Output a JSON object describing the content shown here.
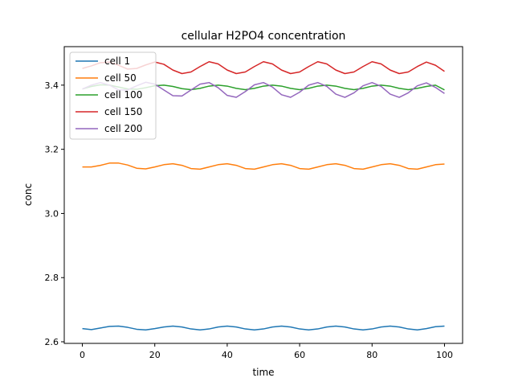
{
  "chart_data": {
    "type": "line",
    "title": "cellular H2PO4 concentration",
    "xlabel": "time",
    "ylabel": "conc",
    "xlim": [
      -5,
      105
    ],
    "ylim": [
      2.595,
      3.52
    ],
    "xticks": [
      0,
      20,
      40,
      60,
      80,
      100
    ],
    "xtick_labels": [
      "0",
      "20",
      "40",
      "60",
      "80",
      "100"
    ],
    "yticks": [
      2.6,
      2.8,
      3.0,
      3.2,
      3.4
    ],
    "ytick_labels": [
      "2.6",
      "2.8",
      "3.0",
      "3.2",
      "3.4"
    ],
    "grid": false,
    "legend_position": "top-left",
    "series": [
      {
        "name": "cell 1",
        "color": "#1f77b4",
        "x": [
          0,
          2.5,
          5,
          7.5,
          10,
          12.5,
          15,
          17.5,
          20,
          22.5,
          25,
          27.5,
          30,
          32.5,
          35,
          37.5,
          40,
          42.5,
          45,
          47.5,
          50,
          52.5,
          55,
          57.5,
          60,
          62.5,
          65,
          67.5,
          70,
          72.5,
          75,
          77.5,
          80,
          82.5,
          85,
          87.5,
          90,
          92.5,
          95,
          97.5,
          100
        ],
        "y": [
          2.641,
          2.638,
          2.643,
          2.648,
          2.649,
          2.645,
          2.639,
          2.637,
          2.641,
          2.646,
          2.649,
          2.646,
          2.64,
          2.637,
          2.64,
          2.646,
          2.649,
          2.646,
          2.64,
          2.637,
          2.64,
          2.646,
          2.649,
          2.646,
          2.64,
          2.637,
          2.64,
          2.646,
          2.649,
          2.646,
          2.64,
          2.637,
          2.64,
          2.646,
          2.649,
          2.646,
          2.64,
          2.637,
          2.641,
          2.647,
          2.649
        ]
      },
      {
        "name": "cell 50",
        "color": "#ff7f0e",
        "x": [
          0,
          2.5,
          5,
          7.5,
          10,
          12.5,
          15,
          17.5,
          20,
          22.5,
          25,
          27.5,
          30,
          32.5,
          35,
          37.5,
          40,
          42.5,
          45,
          47.5,
          50,
          52.5,
          55,
          57.5,
          60,
          62.5,
          65,
          67.5,
          70,
          72.5,
          75,
          77.5,
          80,
          82.5,
          85,
          87.5,
          90,
          92.5,
          95,
          97.5,
          100
        ],
        "y": [
          3.145,
          3.145,
          3.15,
          3.157,
          3.157,
          3.151,
          3.141,
          3.139,
          3.145,
          3.152,
          3.155,
          3.15,
          3.14,
          3.138,
          3.145,
          3.152,
          3.155,
          3.15,
          3.14,
          3.138,
          3.145,
          3.152,
          3.155,
          3.15,
          3.14,
          3.138,
          3.145,
          3.152,
          3.155,
          3.15,
          3.14,
          3.138,
          3.145,
          3.152,
          3.155,
          3.15,
          3.14,
          3.138,
          3.145,
          3.152,
          3.154
        ]
      },
      {
        "name": "cell 100",
        "color": "#2ca02c",
        "x": [
          0,
          2.5,
          5,
          7.5,
          10,
          12.5,
          15,
          17.5,
          20,
          22.5,
          25,
          27.5,
          30,
          32.5,
          35,
          37.5,
          40,
          42.5,
          45,
          47.5,
          50,
          52.5,
          55,
          57.5,
          60,
          62.5,
          65,
          67.5,
          70,
          72.5,
          75,
          77.5,
          80,
          82.5,
          85,
          87.5,
          90,
          92.5,
          95,
          97.5,
          100
        ],
        "y": [
          3.388,
          3.396,
          3.401,
          3.4,
          3.394,
          3.388,
          3.387,
          3.392,
          3.398,
          3.4,
          3.396,
          3.389,
          3.386,
          3.39,
          3.397,
          3.4,
          3.397,
          3.39,
          3.386,
          3.39,
          3.397,
          3.4,
          3.397,
          3.39,
          3.386,
          3.39,
          3.397,
          3.4,
          3.397,
          3.39,
          3.386,
          3.39,
          3.397,
          3.4,
          3.397,
          3.39,
          3.386,
          3.39,
          3.396,
          3.4,
          3.385
        ]
      },
      {
        "name": "cell 150",
        "color": "#d62728",
        "x": [
          0,
          2.5,
          5,
          7.5,
          10,
          12.5,
          15,
          17.5,
          20,
          22.5,
          25,
          27.5,
          30,
          32.5,
          35,
          37.5,
          40,
          42.5,
          45,
          47.5,
          50,
          52.5,
          55,
          57.5,
          60,
          62.5,
          65,
          67.5,
          70,
          72.5,
          75,
          77.5,
          80,
          82.5,
          85,
          87.5,
          90,
          92.5,
          95,
          97.5,
          100
        ],
        "y": [
          3.452,
          3.46,
          3.47,
          3.472,
          3.462,
          3.45,
          3.452,
          3.463,
          3.472,
          3.465,
          3.447,
          3.436,
          3.441,
          3.458,
          3.473,
          3.466,
          3.447,
          3.436,
          3.441,
          3.458,
          3.473,
          3.466,
          3.447,
          3.436,
          3.441,
          3.458,
          3.473,
          3.466,
          3.447,
          3.436,
          3.441,
          3.458,
          3.473,
          3.466,
          3.447,
          3.436,
          3.441,
          3.458,
          3.472,
          3.462,
          3.443
        ]
      },
      {
        "name": "cell 200",
        "color": "#9467bd",
        "x": [
          0,
          2.5,
          5,
          7.5,
          10,
          12.5,
          15,
          17.5,
          20,
          22.5,
          25,
          27.5,
          30,
          32.5,
          35,
          37.5,
          40,
          42.5,
          45,
          47.5,
          50,
          52.5,
          55,
          57.5,
          60,
          62.5,
          65,
          67.5,
          70,
          72.5,
          75,
          77.5,
          80,
          82.5,
          85,
          87.5,
          90,
          92.5,
          95,
          97.5,
          100
        ],
        "y": [
          3.388,
          3.4,
          3.408,
          3.4,
          3.385,
          3.385,
          3.398,
          3.409,
          3.403,
          3.385,
          3.367,
          3.366,
          3.385,
          3.403,
          3.408,
          3.392,
          3.368,
          3.362,
          3.38,
          3.401,
          3.408,
          3.394,
          3.37,
          3.362,
          3.378,
          3.4,
          3.408,
          3.396,
          3.372,
          3.362,
          3.376,
          3.398,
          3.408,
          3.396,
          3.372,
          3.362,
          3.376,
          3.398,
          3.407,
          3.393,
          3.374
        ]
      }
    ]
  }
}
